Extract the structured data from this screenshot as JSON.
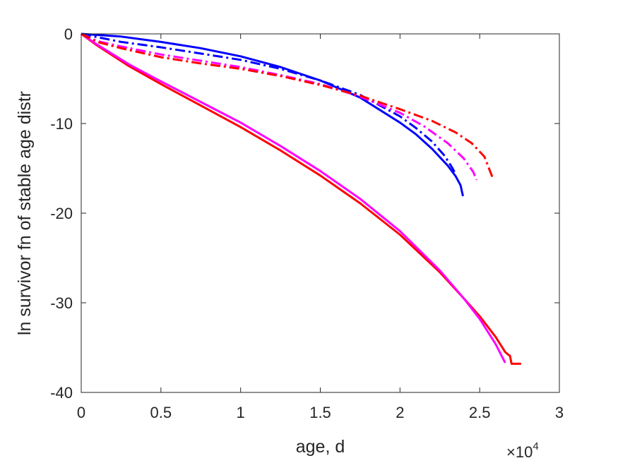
{
  "chart_data": {
    "type": "line",
    "xlabel": "age, d",
    "ylabel": "ln survivor fn of stable age distr",
    "x_exponent_base": "×10",
    "x_exponent_power": "4",
    "xlim": [
      0,
      30000
    ],
    "ylim": [
      -40,
      0
    ],
    "xticks": [
      0,
      5000,
      10000,
      15000,
      20000,
      25000,
      30000
    ],
    "xtick_labels": [
      "0",
      "0.5",
      "1",
      "1.5",
      "2",
      "2.5",
      "3"
    ],
    "yticks": [
      0,
      -10,
      -20,
      -30,
      -40
    ],
    "ytick_labels": [
      "0",
      "-10",
      "-20",
      "-30",
      "-40"
    ],
    "grid": false,
    "series": [
      {
        "color": "#ff0000",
        "dash": "solid",
        "x": [
          0,
          1000,
          3000,
          5000,
          7500,
          10000,
          12500,
          15000,
          17500,
          20000,
          22500,
          24000,
          25000,
          26000,
          26600,
          26800,
          26900,
          27000,
          27600
        ],
        "y": [
          0,
          -1.3,
          -3.6,
          -5.6,
          -8.0,
          -10.4,
          -13.0,
          -15.8,
          -18.9,
          -22.4,
          -26.6,
          -29.5,
          -31.5,
          -33.8,
          -35.5,
          -35.8,
          -35.9,
          -36.8,
          -36.8
        ]
      },
      {
        "color": "#ff00ff",
        "dash": "solid",
        "x": [
          0,
          1000,
          3000,
          5000,
          7500,
          10000,
          12500,
          15000,
          17500,
          20000,
          22500,
          24000,
          25000,
          26000,
          26600
        ],
        "y": [
          0,
          -1.2,
          -3.4,
          -5.3,
          -7.6,
          -9.9,
          -12.5,
          -15.3,
          -18.4,
          -22.0,
          -26.4,
          -29.5,
          -31.8,
          -34.6,
          -36.7
        ]
      },
      {
        "color": "#0000ff",
        "dash": "solid",
        "x": [
          0,
          2500,
          5000,
          7500,
          10000,
          12500,
          15000,
          17500,
          20000,
          21000,
          22000,
          23000,
          23500,
          23800,
          23950
        ],
        "y": [
          0,
          -0.3,
          -0.9,
          -1.6,
          -2.5,
          -3.7,
          -5.2,
          -7.1,
          -9.9,
          -11.2,
          -12.8,
          -14.7,
          -15.9,
          -16.9,
          -18.1
        ]
      },
      {
        "color": "#0000ff",
        "dash": "dashdot",
        "x": [
          0,
          2500,
          5000,
          7500,
          10000,
          12500,
          15000,
          17500,
          20000,
          21000,
          22000,
          22800,
          23300,
          23500
        ],
        "y": [
          0,
          -0.9,
          -1.5,
          -2.2,
          -2.9,
          -3.9,
          -5.2,
          -6.8,
          -9.2,
          -10.5,
          -12.0,
          -13.6,
          -15.0,
          -15.7
        ]
      },
      {
        "color": "#ff00ff",
        "dash": "dashdot",
        "x": [
          0,
          1000,
          2500,
          5000,
          7500,
          10000,
          12500,
          15000,
          17500,
          20000,
          21500,
          23000,
          24000,
          24600,
          24800
        ],
        "y": [
          0,
          -0.8,
          -1.4,
          -2.3,
          -3.0,
          -3.7,
          -4.6,
          -5.6,
          -7.0,
          -8.8,
          -10.3,
          -12.2,
          -13.9,
          -15.4,
          -16.3
        ]
      },
      {
        "color": "#ff0000",
        "dash": "dashdot",
        "x": [
          0,
          1000,
          2500,
          5000,
          7500,
          10000,
          12500,
          15000,
          17500,
          20000,
          22000,
          23500,
          24500,
          25300,
          25800
        ],
        "y": [
          0,
          -0.9,
          -1.6,
          -2.6,
          -3.3,
          -3.9,
          -4.7,
          -5.7,
          -6.9,
          -8.4,
          -9.7,
          -11.0,
          -12.2,
          -13.7,
          -16.0
        ]
      }
    ]
  }
}
